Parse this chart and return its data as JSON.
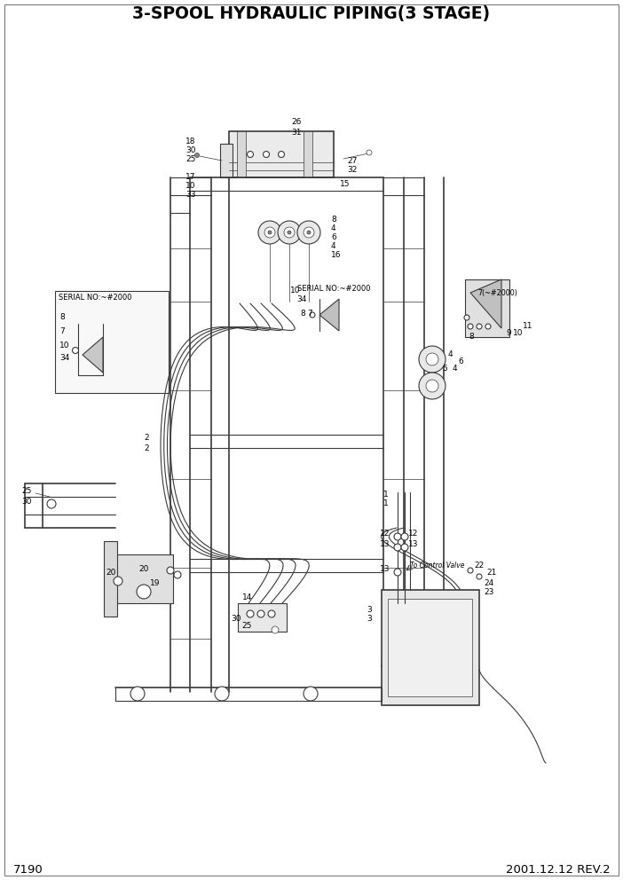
{
  "title": "3-SPOOL HYDRAULIC PIPING(3 STAGE)",
  "page_number": "7190",
  "date_rev": "2001.12.12 REV.2",
  "title_fontsize": 13.5,
  "footer_fontsize": 9.5,
  "bg_color": "#ffffff",
  "line_color": "#3a3a3a",
  "label_fontsize": 6.5,
  "anno_fontsize": 6.0,
  "serial_label1": "SERIAL NO:~#2000",
  "serial_label2": "SERIAL NO:~#2000",
  "serial_label3": "7(~#2000)",
  "to_control_valve": "To Control Valve"
}
